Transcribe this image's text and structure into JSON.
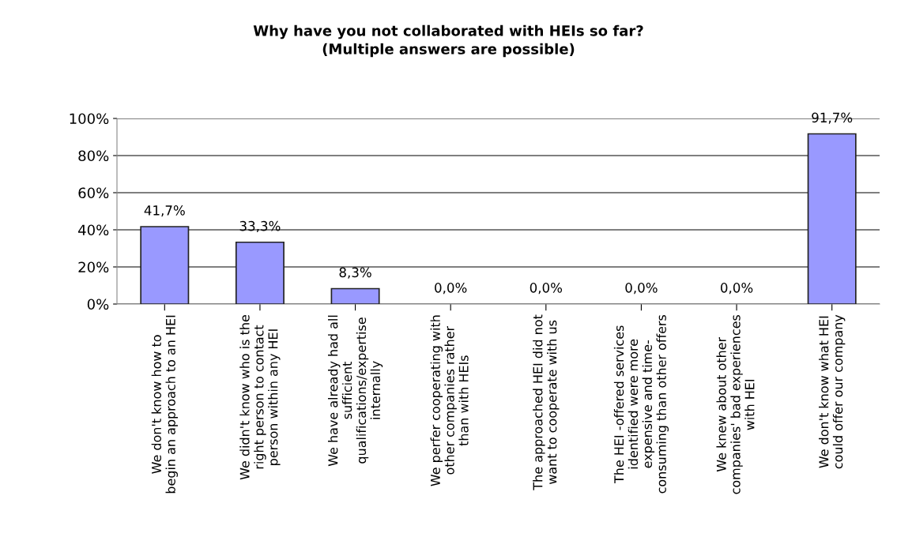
{
  "chart_data": {
    "type": "bar",
    "title": "Why have you not collaborated with HEIs so far?\n(Multiple answers are possible)",
    "categories": [
      "We don't know how to\nbegin an approach to an HEI",
      "We didn't know who is the\nright person to contact\nperson within any HEI",
      "We have already had all\nsufficient\nqualifications/expertise\ninternally",
      "We perfer cooperating with\nother companies rather\nthan with HEIs",
      "The approached HEI did not\nwant to cooperate with us",
      "The HEI -offered services\nidentified were more\nexpensive and time-\nconsuming than other offers",
      "We knew about other\ncompanies' bad experiences\nwith HEI",
      "We don't know what HEI\ncould offer our company"
    ],
    "values": [
      41.7,
      33.3,
      8.3,
      0,
      0,
      0,
      0,
      91.7
    ],
    "value_labels": [
      "41,7%",
      "33,3%",
      "8,3%",
      "0,0%",
      "0,0%",
      "0,0%",
      "0,0%",
      "91,7%"
    ],
    "color": "#9999ff",
    "ylim": [
      0,
      100
    ],
    "yticks": [
      {
        "value": 0,
        "label": "0%"
      },
      {
        "value": 20,
        "label": "20%"
      },
      {
        "value": 40,
        "label": "40%"
      },
      {
        "value": 60,
        "label": "60%"
      },
      {
        "value": 80,
        "label": "80%"
      },
      {
        "value": 100,
        "label": "100%"
      }
    ],
    "grid": "y",
    "legend": false
  }
}
